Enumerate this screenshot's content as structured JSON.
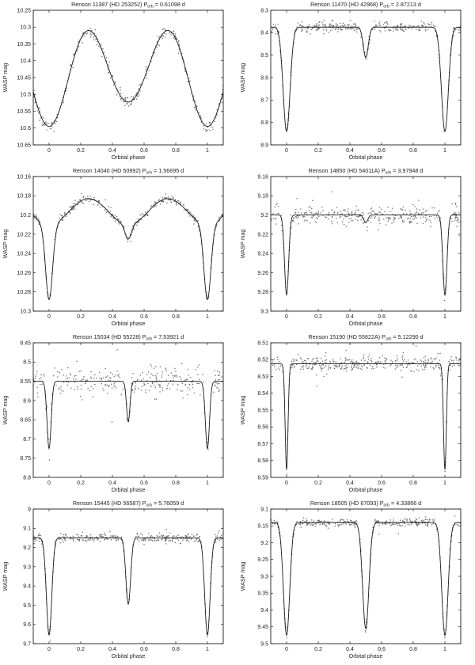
{
  "chart_data": [
    {
      "type": "scatter",
      "title": "Renson 11387 (HD 253252) P",
      "title_sub": "orb",
      "title_tail": " = 0.61098 d",
      "xlabel": "Orbital phase",
      "ylabel": "WASP mag",
      "xlim": [
        -0.1,
        1.1
      ],
      "ylim": [
        10.65,
        10.25
      ],
      "xticks": [
        0,
        0.2,
        0.4,
        0.6,
        0.8,
        1
      ],
      "xtick_labels": [
        "0",
        "0.2",
        "0.4",
        "0.6",
        "0.8",
        "1"
      ],
      "yticks": [
        10.25,
        10.3,
        10.35,
        10.4,
        10.45,
        10.5,
        10.55,
        10.6,
        10.65
      ],
      "ytick_labels": [
        "10.25",
        "10.3",
        "10.35",
        "10.4",
        "10.45",
        "10.5",
        "10.55",
        "10.6",
        "10.65"
      ],
      "model": {
        "base": 10.31,
        "dips": [
          {
            "center": 0.0,
            "depth": 0.285,
            "width": 0.2,
            "shape": "cos"
          },
          {
            "center": 0.5,
            "depth": 0.14,
            "width": 0.2,
            "shape": "cos"
          }
        ]
      },
      "scatter": 0.008,
      "n_points": 340
    },
    {
      "type": "scatter",
      "title": "Renson 11470 (HD 42968) P",
      "title_sub": "orb",
      "title_tail": " = 2.87213 d",
      "xlabel": "Orbital phase",
      "ylabel": "WASP mag",
      "xlim": [
        -0.1,
        1.1
      ],
      "ylim": [
        8.9,
        8.3
      ],
      "xticks": [
        0,
        0.2,
        0.4,
        0.6,
        0.8,
        1
      ],
      "xtick_labels": [
        "0",
        "0.2",
        "0.4",
        "0.6",
        "0.8",
        "1"
      ],
      "yticks": [
        8.3,
        8.4,
        8.5,
        8.6,
        8.7,
        8.8,
        8.9
      ],
      "ytick_labels": [
        "8.3",
        "8.4",
        "8.5",
        "8.6",
        "8.7",
        "8.8",
        "8.9"
      ],
      "model": {
        "base": 8.375,
        "dips": [
          {
            "center": 0.0,
            "depth": 0.465,
            "width": 0.022,
            "shape": "gauss"
          },
          {
            "center": 0.5,
            "depth": 0.135,
            "width": 0.016,
            "shape": "gauss"
          }
        ]
      },
      "scatter": 0.012,
      "n_points": 360
    },
    {
      "type": "scatter",
      "title": "Renson 14040 (HD 50992) P",
      "title_sub": "orb",
      "title_tail": " = 1.56695 d",
      "xlabel": "Orbital phase",
      "ylabel": "WASP mag",
      "xlim": [
        -0.1,
        1.1
      ],
      "ylim": [
        10.3,
        10.16
      ],
      "xticks": [
        0,
        0.2,
        0.4,
        0.6,
        0.8,
        1
      ],
      "xtick_labels": [
        "0",
        "0.2",
        "0.4",
        "0.6",
        "0.8",
        "1"
      ],
      "yticks": [
        10.16,
        10.18,
        10.2,
        10.22,
        10.24,
        10.26,
        10.28,
        10.3
      ],
      "ytick_labels": [
        "10.16",
        "10.18",
        "10.2",
        "10.22",
        "10.24",
        "10.26",
        "10.28",
        "10.3"
      ],
      "model": {
        "base": 10.183,
        "ellipsoidal": 0.027,
        "dips": [
          {
            "center": 0.0,
            "depth": 0.078,
            "width": 0.022,
            "shape": "gauss"
          },
          {
            "center": 0.5,
            "depth": 0.015,
            "width": 0.02,
            "shape": "gauss"
          }
        ]
      },
      "scatter": 0.0018,
      "n_points": 360
    },
    {
      "type": "scatter",
      "title": "Renson 14850 (HD 54011A) P",
      "title_sub": "orb",
      "title_tail": " = 3.97948 d",
      "xlabel": "Orbital phase",
      "ylabel": "WASP mag",
      "xlim": [
        -0.1,
        1.1
      ],
      "ylim": [
        9.3,
        9.16
      ],
      "xticks": [
        0,
        0.2,
        0.4,
        0.6,
        0.8,
        1
      ],
      "xtick_labels": [
        "0",
        "0.2",
        "0.4",
        "0.6",
        "0.8",
        "1"
      ],
      "yticks": [
        9.16,
        9.18,
        9.2,
        9.22,
        9.24,
        9.26,
        9.28,
        9.3
      ],
      "ytick_labels": [
        "9.16",
        "9.18",
        "9.2",
        "9.22",
        "9.24",
        "9.26",
        "9.28",
        "9.3"
      ],
      "model": {
        "base": 9.2,
        "dips": [
          {
            "center": 0.0,
            "depth": 0.083,
            "width": 0.013,
            "shape": "gauss"
          },
          {
            "center": 0.5,
            "depth": 0.008,
            "width": 0.013,
            "shape": "gauss"
          }
        ]
      },
      "scatter": 0.0045,
      "n_points": 360
    },
    {
      "type": "scatter",
      "title": "Renson 15034 (HD 55228) P",
      "title_sub": "orb",
      "title_tail": " = 7.53921 d",
      "xlabel": "Orbital phase",
      "ylabel": "WASP mag",
      "xlim": [
        -0.1,
        1.1
      ],
      "ylim": [
        8.8,
        8.45
      ],
      "xticks": [
        0,
        0.2,
        0.4,
        0.6,
        0.8,
        1
      ],
      "xtick_labels": [
        "0",
        "0.2",
        "0.4",
        "0.6",
        "0.8",
        "1"
      ],
      "yticks": [
        8.45,
        8.5,
        8.55,
        8.6,
        8.65,
        8.7,
        8.75,
        8.8
      ],
      "ytick_labels": [
        "8.45",
        "8.5",
        "8.55",
        "8.6",
        "8.65",
        "8.7",
        "8.75",
        "8.8"
      ],
      "model": {
        "base": 8.55,
        "dips": [
          {
            "center": 0.0,
            "depth": 0.175,
            "width": 0.013,
            "shape": "gauss"
          },
          {
            "center": 0.5,
            "depth": 0.105,
            "width": 0.011,
            "shape": "gauss"
          }
        ]
      },
      "scatter": 0.018,
      "n_points": 320
    },
    {
      "type": "scatter",
      "title": "Renson 15190 (HD 55822A) P",
      "title_sub": "orb",
      "title_tail": " = 5.12290 d",
      "xlabel": "Orbital phase",
      "ylabel": "WASP mag",
      "xlim": [
        -0.1,
        1.1
      ],
      "ylim": [
        8.59,
        8.51
      ],
      "xticks": [
        0,
        0.2,
        0.4,
        0.6,
        0.8,
        1
      ],
      "xtick_labels": [
        "0",
        "0.2",
        "0.4",
        "0.6",
        "0.8",
        "1"
      ],
      "yticks": [
        8.51,
        8.52,
        8.53,
        8.54,
        8.55,
        8.56,
        8.57,
        8.58,
        8.59
      ],
      "ytick_labels": [
        "8.51",
        "8.52",
        "8.53",
        "8.54",
        "8.55",
        "8.56",
        "8.57",
        "8.58",
        "8.59"
      ],
      "model": {
        "base": 8.5225,
        "dips": [
          {
            "center": 0.0,
            "depth": 0.063,
            "width": 0.009,
            "shape": "gauss"
          }
        ]
      },
      "scatter": 0.0022,
      "n_points": 380
    },
    {
      "type": "scatter",
      "title": "Renson 15445 (HD 56587) P",
      "title_sub": "orb",
      "title_tail": " = 5.76059 d",
      "xlabel": "Orbital phase",
      "ylabel": "WASP mag",
      "xlim": [
        -0.1,
        1.1
      ],
      "ylim": [
        9.7,
        9.0
      ],
      "xticks": [
        0,
        0.2,
        0.4,
        0.6,
        0.8,
        1
      ],
      "xtick_labels": [
        "0",
        "0.2",
        "0.4",
        "0.6",
        "0.8",
        "1"
      ],
      "yticks": [
        9.0,
        9.1,
        9.2,
        9.3,
        9.4,
        9.5,
        9.6,
        9.7
      ],
      "ytick_labels": [
        "9",
        "9.1",
        "9.2",
        "9.3",
        "9.4",
        "9.5",
        "9.6",
        "9.7"
      ],
      "model": {
        "base": 9.15,
        "dips": [
          {
            "center": 0.0,
            "depth": 0.505,
            "width": 0.017,
            "shape": "gauss"
          },
          {
            "center": 0.5,
            "depth": 0.345,
            "width": 0.015,
            "shape": "gauss"
          }
        ]
      },
      "scatter": 0.011,
      "n_points": 380
    },
    {
      "type": "scatter",
      "title": "Renson 18505 (HD 67093) P",
      "title_sub": "orb",
      "title_tail": " = 4.33866 d",
      "xlabel": "Orbital phase",
      "ylabel": "WASP mag",
      "xlim": [
        -0.1,
        1.1
      ],
      "ylim": [
        9.5,
        9.1
      ],
      "xticks": [
        0,
        0.2,
        0.4,
        0.6,
        0.8,
        1
      ],
      "xtick_labels": [
        "0",
        "0.2",
        "0.4",
        "0.6",
        "0.8",
        "1"
      ],
      "yticks": [
        9.1,
        9.15,
        9.2,
        9.25,
        9.3,
        9.35,
        9.4,
        9.45,
        9.5
      ],
      "ytick_labels": [
        "9.1",
        "9.15",
        "9.2",
        "9.25",
        "9.3",
        "9.35",
        "9.4",
        "9.45",
        "9.5"
      ],
      "model": {
        "base": 9.14,
        "dips": [
          {
            "center": 0.0,
            "depth": 0.335,
            "width": 0.02,
            "shape": "gauss"
          },
          {
            "center": 0.5,
            "depth": 0.315,
            "width": 0.02,
            "shape": "gauss"
          }
        ]
      },
      "scatter": 0.006,
      "n_points": 380
    }
  ]
}
